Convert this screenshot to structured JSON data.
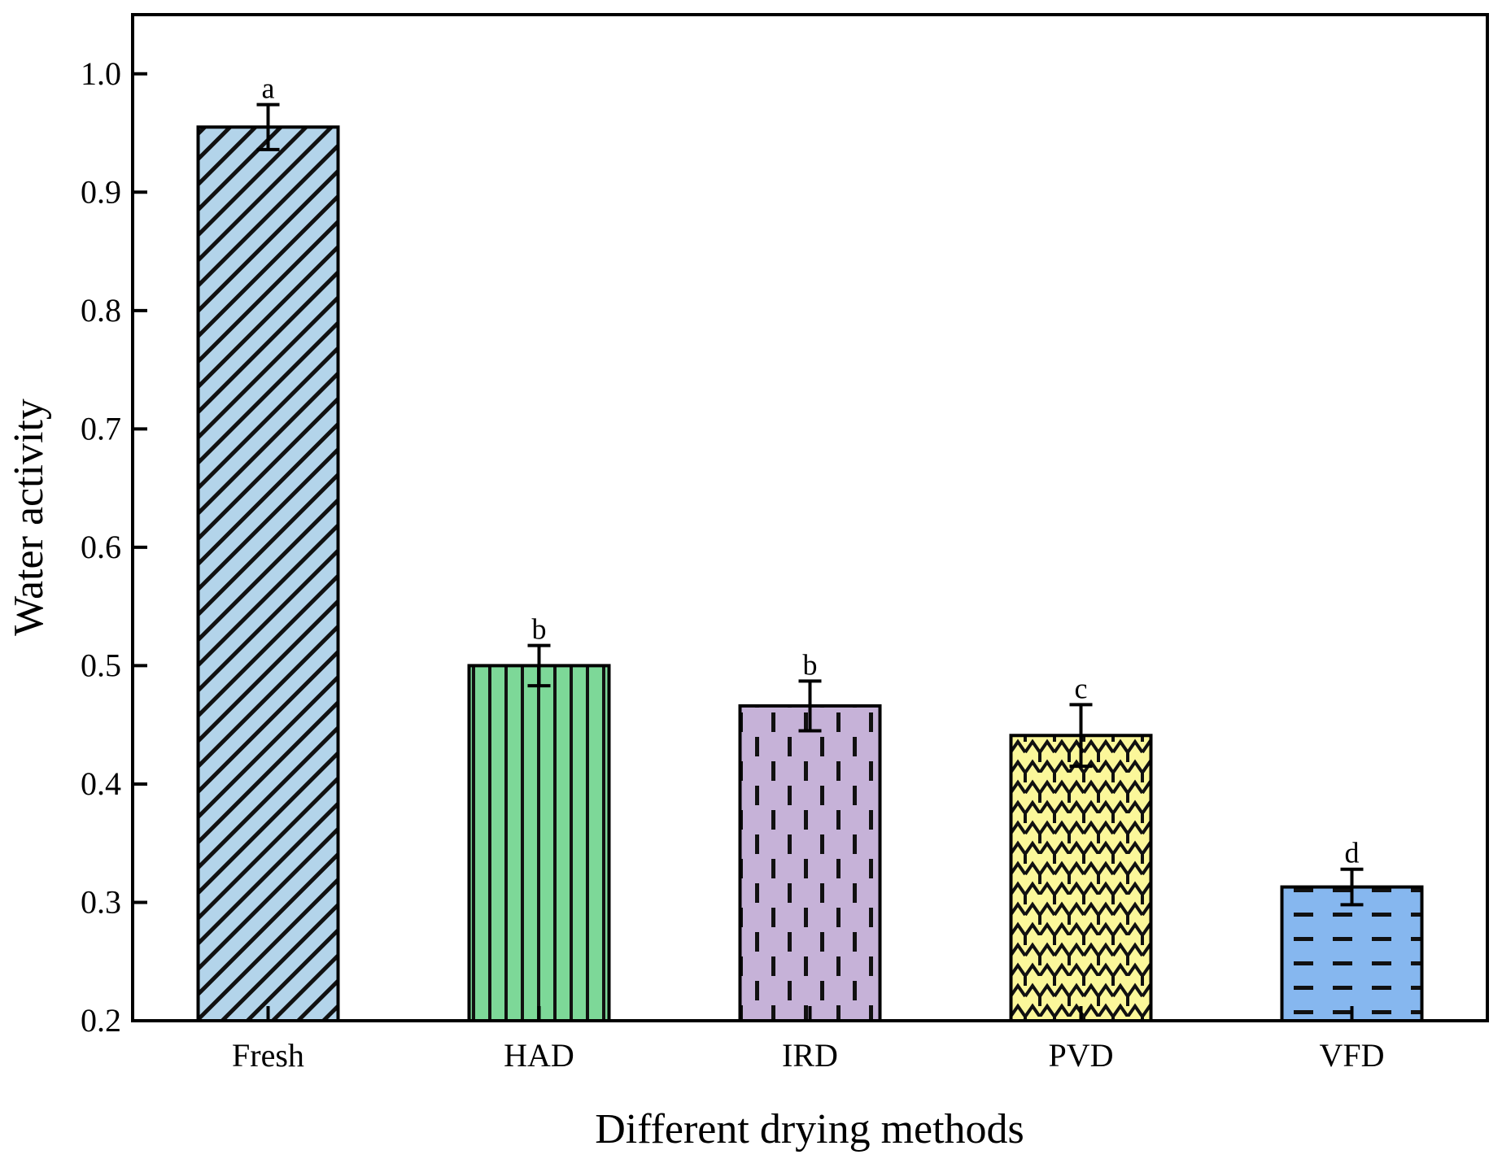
{
  "chart_data": {
    "type": "bar",
    "title": "",
    "xlabel": "Different drying methods",
    "ylabel": "Water activity",
    "ylim": [
      0.2,
      1.05
    ],
    "yticks": [
      0.2,
      0.3,
      0.4,
      0.5,
      0.6,
      0.7,
      0.8,
      0.9,
      1.0
    ],
    "ytick_labels": [
      "0.2",
      "0.3",
      "0.4",
      "0.5",
      "0.6",
      "0.7",
      "0.8",
      "0.9",
      "1.0"
    ],
    "grid": false,
    "categories": [
      "Fresh",
      "HAD",
      "IRD",
      "PVD",
      "VFD"
    ],
    "values": [
      0.955,
      0.5,
      0.466,
      0.441,
      0.313
    ],
    "errors": [
      0.019,
      0.017,
      0.021,
      0.026,
      0.015
    ],
    "significance_letters": [
      "a",
      "b",
      "b",
      "c",
      "d"
    ],
    "colors": [
      "#b3d4ea",
      "#7dd898",
      "#c6b2d8",
      "#fbf79a",
      "#86b7ef"
    ],
    "patterns": [
      "diagonal-hatch",
      "vertical-lines",
      "dashed-vertical",
      "scallop",
      "dashed-horizontal"
    ]
  }
}
